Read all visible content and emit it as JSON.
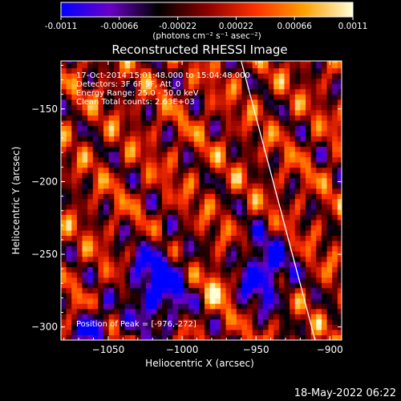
{
  "colorbar": {
    "tick_labels": [
      "-0.0011",
      "-0.00066",
      "-0.00022",
      "0.00022",
      "0.00066",
      "0.0011"
    ],
    "tick_values": [
      -0.0011,
      -0.00066,
      -0.00022,
      0.00022,
      0.00066,
      0.0011
    ],
    "range": [
      -0.0011,
      0.0011
    ],
    "units": "(photons cm⁻² s⁻¹ asec⁻²)",
    "colormap": [
      "#0000ff",
      "#6a00c8",
      "#000000",
      "#8c0000",
      "#ff3000",
      "#ffa000",
      "#ffffd8"
    ]
  },
  "chart_data": {
    "type": "heatmap",
    "title": "Reconstructed RHESSI Image",
    "xlabel": "Heliocentric X (arcsec)",
    "ylabel": "Heliocentric Y (arcsec)",
    "xlim": [
      -1082,
      -892
    ],
    "ylim": [
      -309,
      -117
    ],
    "x_ticks": [
      -1050,
      -1000,
      -950,
      -900
    ],
    "y_ticks": [
      -300,
      -250,
      -200,
      -150
    ],
    "x_tick_labels": [
      "−1050",
      "−1000",
      "−950",
      "−900"
    ],
    "y_tick_labels": [
      "−300",
      "−250",
      "−200",
      "−150"
    ],
    "annotations": [
      "17-Oct-2014 15:01:48.000 to 15:04:48.000",
      "Detectors: 3F 6F 9F, Att_0",
      "Energy Range: 25.0 - 50.0 keV",
      "Clean     Total counts: 2.63E+03"
    ],
    "peak_label": "Position of Peak = [-976,-272]",
    "peak": [
      -976,
      -272
    ],
    "limb_line": {
      "x": [
        -960,
        -910
      ],
      "y": [
        -117,
        -309
      ]
    },
    "grid": false
  },
  "footer": {
    "date": "18-May-2022 06:22"
  }
}
